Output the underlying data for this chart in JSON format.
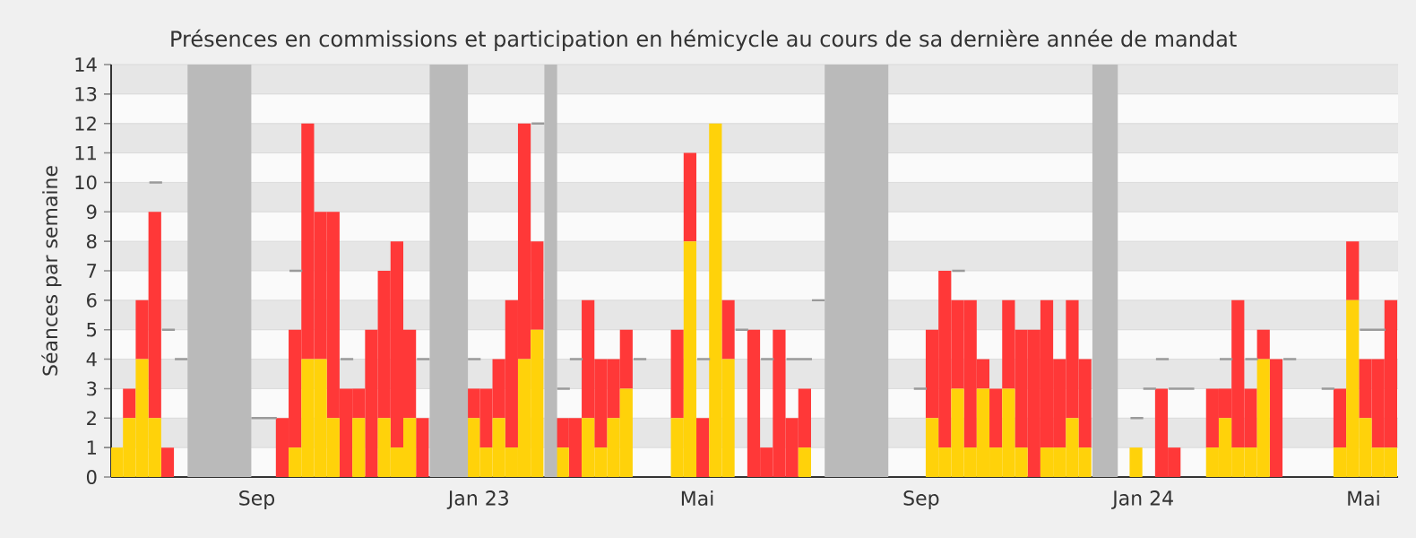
{
  "chart_data": {
    "type": "bar",
    "title": "Présences en commissions et participation en hémicycle au cours de sa dernière année de mandat",
    "ylabel": "Séances par semaine",
    "stacked": true,
    "grid": "y",
    "x": [
      "2022-06-16",
      "2022-06-23",
      "2022-06-30",
      "2022-07-07",
      "2022-07-14",
      "2022-07-21",
      "2022-07-28",
      "2022-08-04",
      "2022-08-11",
      "2022-08-18",
      "2022-08-25",
      "2022-09-01",
      "2022-09-08",
      "2022-09-15",
      "2022-09-22",
      "2022-09-29",
      "2022-10-06",
      "2022-10-13",
      "2022-10-20",
      "2022-10-27",
      "2022-11-03",
      "2022-11-10",
      "2022-11-17",
      "2022-11-24",
      "2022-12-01",
      "2022-12-08",
      "2022-12-15",
      "2022-12-22",
      "2022-12-29",
      "2023-01-05",
      "2023-01-12",
      "2023-01-19",
      "2023-01-26",
      "2023-02-02",
      "2023-02-09",
      "2023-02-16",
      "2023-02-23",
      "2023-03-02",
      "2023-03-09",
      "2023-03-16",
      "2023-03-23",
      "2023-03-30",
      "2023-04-06",
      "2023-04-13",
      "2023-04-20",
      "2023-04-27",
      "2023-05-04",
      "2023-05-11",
      "2023-05-18",
      "2023-05-25",
      "2023-06-01",
      "2023-06-08",
      "2023-06-15",
      "2023-06-22",
      "2023-06-29",
      "2023-07-06",
      "2023-07-13",
      "2023-07-20",
      "2023-07-27",
      "2023-08-03",
      "2023-08-10",
      "2023-08-17",
      "2023-08-24",
      "2023-08-31",
      "2023-09-07",
      "2023-09-14",
      "2023-09-21",
      "2023-09-28",
      "2023-10-05",
      "2023-10-12",
      "2023-10-19",
      "2023-10-26",
      "2023-11-02",
      "2023-11-09",
      "2023-11-16",
      "2023-11-23",
      "2023-11-30",
      "2023-12-07",
      "2023-12-14",
      "2023-12-21",
      "2023-12-28",
      "2024-01-04",
      "2024-01-11",
      "2024-01-18",
      "2024-01-25",
      "2024-02-01",
      "2024-02-08",
      "2024-02-15",
      "2024-02-22",
      "2024-02-29",
      "2024-03-07",
      "2024-03-14",
      "2024-03-21",
      "2024-03-28",
      "2024-04-04",
      "2024-04-11",
      "2024-04-18",
      "2024-04-25",
      "2024-05-02",
      "2024-05-09",
      "2024-05-16"
    ],
    "xlim": [
      "2022-06-13",
      "2024-05-20"
    ],
    "ylim": [
      0,
      14
    ],
    "xticks": [
      {
        "value": "2022-09-01",
        "label": "Sep"
      },
      {
        "value": "2023-01-01",
        "label": "Jan 23"
      },
      {
        "value": "2023-05-01",
        "label": "Mai"
      },
      {
        "value": "2023-09-01",
        "label": "Sep"
      },
      {
        "value": "2024-01-01",
        "label": "Jan 24"
      },
      {
        "value": "2024-05-01",
        "label": "Mai"
      }
    ],
    "yticks": [
      0,
      1,
      2,
      3,
      4,
      5,
      6,
      7,
      8,
      9,
      10,
      11,
      12,
      13,
      14
    ],
    "bands": [
      {
        "axis": "x",
        "from": "2022-07-25",
        "to": "2022-08-29",
        "color": "#bababa"
      },
      {
        "axis": "x",
        "from": "2022-12-05",
        "to": "2022-12-26",
        "color": "#bababa"
      },
      {
        "axis": "x",
        "from": "2023-02-06",
        "to": "2023-02-13",
        "color": "#bababa"
      },
      {
        "axis": "x",
        "from": "2023-07-10",
        "to": "2023-08-14",
        "color": "#bababa"
      },
      {
        "axis": "x",
        "from": "2023-12-04",
        "to": "2023-12-18",
        "color": "#bababa"
      }
    ],
    "series": [
      {
        "type": "step",
        "color": "#9a9a9a",
        "x": [
          "2022-07-04",
          "2022-07-11",
          null,
          "2022-07-11",
          "2022-07-18",
          null,
          "2022-07-18",
          "2022-07-25",
          null,
          "2022-08-29",
          "2022-09-05",
          null,
          "2022-09-05",
          "2022-09-12",
          null,
          "2022-09-19",
          "2022-09-26",
          null,
          "2022-10-17",
          "2022-10-24",
          null,
          "2022-11-28",
          "2022-12-05",
          null,
          "2022-12-26",
          "2023-01-02",
          null,
          "2023-01-30",
          "2023-02-06",
          null,
          "2023-02-13",
          "2023-02-20",
          null,
          "2023-02-20",
          "2023-02-27",
          null,
          "2023-03-27",
          "2023-04-03",
          null,
          "2023-05-01",
          "2023-05-08",
          null,
          "2023-05-22",
          "2023-05-29",
          null,
          "2023-06-05",
          "2023-06-12",
          null,
          "2023-06-19",
          "2023-06-26",
          null,
          "2023-06-26",
          "2023-07-03",
          null,
          "2023-07-03",
          "2023-07-10",
          null,
          "2023-08-28",
          "2023-09-04",
          null,
          "2023-09-18",
          "2023-09-25",
          null,
          "2023-12-25",
          "2024-01-01",
          null,
          "2024-01-01",
          "2024-01-08",
          null,
          "2024-01-08",
          "2024-01-15",
          null,
          "2024-01-15",
          "2024-01-22",
          null,
          "2024-01-22",
          "2024-01-29",
          null,
          "2024-02-12",
          "2024-02-19",
          null,
          "2024-02-26",
          "2024-03-04",
          null,
          "2024-03-18",
          "2024-03-25",
          null,
          "2024-04-08",
          "2024-04-15",
          null,
          "2024-04-29",
          "2024-05-06",
          null,
          "2024-05-06",
          "2024-05-13",
          null
        ],
        "values": [
          10,
          10,
          null,
          5,
          5,
          null,
          4,
          4,
          null,
          2,
          2,
          null,
          2,
          2,
          null,
          7,
          7,
          null,
          4,
          4,
          null,
          4,
          4,
          null,
          4,
          4,
          null,
          12,
          12,
          null,
          3,
          3,
          null,
          4,
          4,
          null,
          4,
          4,
          null,
          4,
          4,
          null,
          5,
          5,
          null,
          4,
          4,
          null,
          4,
          4,
          null,
          4,
          4,
          null,
          6,
          6,
          null,
          3,
          3,
          null,
          7,
          7,
          null,
          2,
          2,
          null,
          3,
          3,
          null,
          4,
          4,
          null,
          3,
          3,
          null,
          3,
          3,
          null,
          4,
          4,
          null,
          4,
          4,
          null,
          4,
          4,
          null,
          3,
          3,
          null,
          5,
          5,
          null,
          5,
          5,
          null
        ]
      },
      {
        "type": "bar",
        "color": "#ffd20a",
        "values": [
          1,
          2,
          4,
          2,
          null,
          null,
          null,
          null,
          null,
          null,
          null,
          null,
          null,
          null,
          1,
          4,
          4,
          2,
          null,
          2,
          null,
          2,
          1,
          2,
          null,
          null,
          null,
          null,
          2,
          1,
          2,
          1,
          4,
          5,
          null,
          1,
          null,
          2,
          1,
          2,
          3,
          null,
          null,
          null,
          2,
          8,
          null,
          12,
          4,
          null,
          null,
          null,
          null,
          null,
          1,
          null,
          null,
          null,
          null,
          null,
          null,
          null,
          null,
          null,
          2,
          1,
          3,
          1,
          3,
          1,
          3,
          1,
          null,
          1,
          1,
          2,
          1,
          null,
          null,
          null,
          1,
          null,
          null,
          null,
          null,
          null,
          1,
          2,
          1,
          1,
          4,
          null,
          null,
          null,
          null,
          null,
          1,
          6,
          2,
          1,
          1
        ]
      },
      {
        "type": "bar",
        "color": "#ff3838",
        "values": [
          null,
          1,
          2,
          7,
          1,
          null,
          null,
          null,
          null,
          null,
          null,
          null,
          null,
          2,
          4,
          8,
          5,
          7,
          3,
          1,
          5,
          5,
          7,
          3,
          2,
          null,
          null,
          null,
          1,
          2,
          2,
          5,
          8,
          3,
          null,
          1,
          2,
          4,
          3,
          2,
          2,
          null,
          null,
          null,
          3,
          3,
          2,
          null,
          2,
          null,
          5,
          1,
          5,
          2,
          2,
          null,
          null,
          null,
          null,
          null,
          null,
          null,
          null,
          null,
          3,
          6,
          3,
          5,
          1,
          2,
          3,
          4,
          5,
          5,
          3,
          4,
          3,
          null,
          null,
          null,
          null,
          null,
          3,
          1,
          null,
          null,
          2,
          1,
          5,
          2,
          1,
          4,
          null,
          null,
          null,
          null,
          2,
          2,
          2,
          3,
          5
        ]
      }
    ]
  }
}
